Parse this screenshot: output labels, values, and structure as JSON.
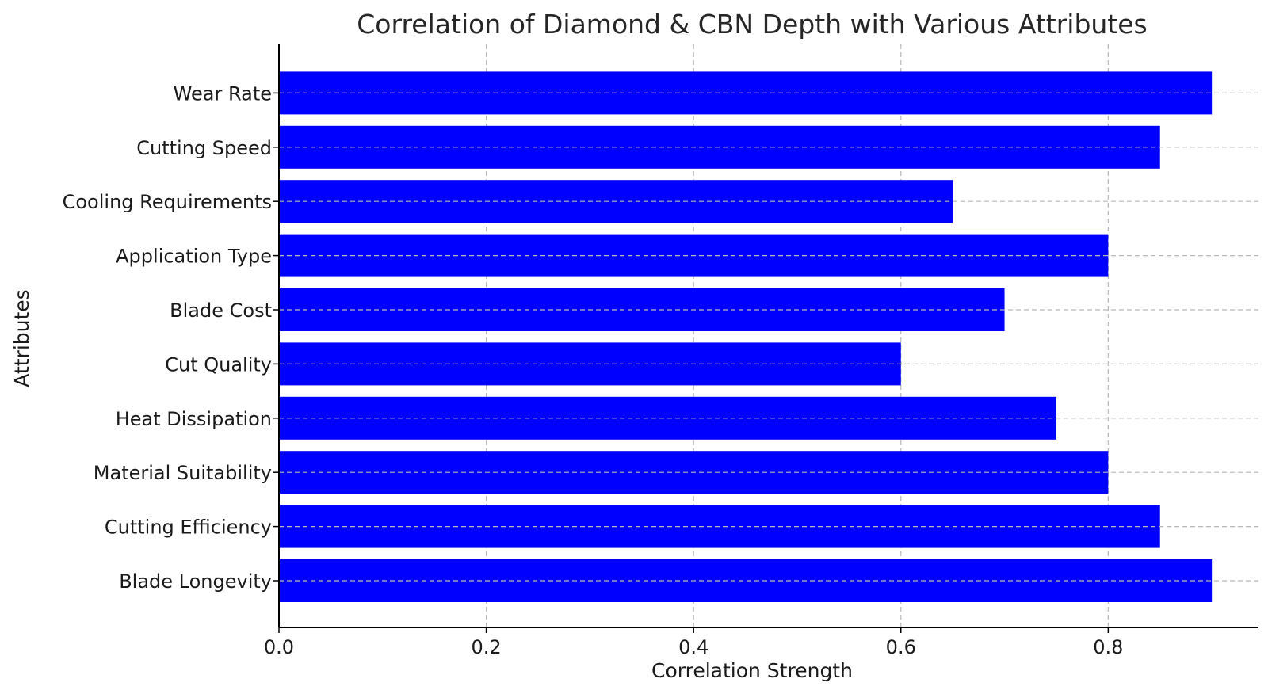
{
  "chart_data": {
    "type": "bar",
    "orientation": "horizontal",
    "title": "Correlation of Diamond & CBN Depth with Various Attributes",
    "xlabel": "Correlation Strength",
    "ylabel": "Attributes",
    "categories": [
      "Blade Longevity",
      "Cutting Efficiency",
      "Material Suitability",
      "Heat Dissipation",
      "Cut Quality",
      "Blade Cost",
      "Application Type",
      "Cooling Requirements",
      "Cutting Speed",
      "Wear Rate"
    ],
    "values": [
      0.9,
      0.85,
      0.8,
      0.75,
      0.6,
      0.7,
      0.8,
      0.65,
      0.85,
      0.9
    ],
    "xlim": [
      0,
      0.945
    ],
    "xticks": [
      0.0,
      0.2,
      0.4,
      0.6,
      0.8
    ],
    "xtick_labels": [
      "0.0",
      "0.2",
      "0.4",
      "0.6",
      "0.8"
    ],
    "bar_color": "#0000ff",
    "grid": true,
    "grid_style": "dashed"
  }
}
